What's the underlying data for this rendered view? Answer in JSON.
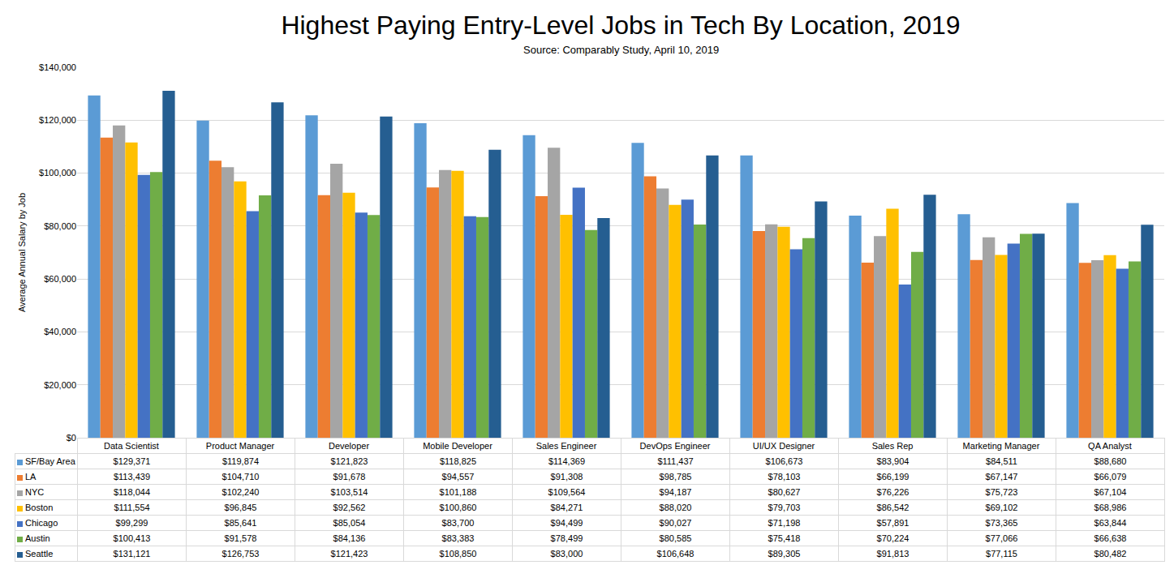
{
  "chart_data": {
    "type": "bar",
    "title": "Highest Paying Entry-Level Jobs in Tech By Location, 2019",
    "subtitle": "Source: Comparably Study, April 10, 2019",
    "y_label": "Average Annual Salary by Job",
    "categories": [
      "Data Scientist",
      "Product Manager",
      "Developer",
      "Mobile Developer",
      "Sales Engineer",
      "DevOps Engineer",
      "UI/UX Designer",
      "Sales Rep",
      "Marketing Manager",
      "QA Analyst"
    ],
    "series": [
      {
        "name": "SF/Bay Area",
        "color": "#5b9bd5",
        "values": [
          129371,
          119874,
          121823,
          118825,
          114369,
          111437,
          106673,
          83904,
          84511,
          88680
        ],
        "value_labels": [
          "$129,371",
          "$119,874",
          "$121,823",
          "$118,825",
          "$114,369",
          "$111,437",
          "$106,673",
          "$83,904",
          "$84,511",
          "$88,680"
        ]
      },
      {
        "name": "LA",
        "color": "#ed7d31",
        "values": [
          113439,
          104710,
          91678,
          94557,
          91308,
          98785,
          78103,
          66199,
          67147,
          66079
        ],
        "value_labels": [
          "$113,439",
          "$104,710",
          "$91,678",
          "$94,557",
          "$91,308",
          "$98,785",
          "$78,103",
          "$66,199",
          "$67,147",
          "$66,079"
        ]
      },
      {
        "name": "NYC",
        "color": "#a5a5a5",
        "values": [
          118044,
          102240,
          103514,
          101188,
          109564,
          94187,
          80627,
          76226,
          75723,
          67104
        ],
        "value_labels": [
          "$118,044",
          "$102,240",
          "$103,514",
          "$101,188",
          "$109,564",
          "$94,187",
          "$80,627",
          "$76,226",
          "$75,723",
          "$67,104"
        ]
      },
      {
        "name": "Boston",
        "color": "#ffc000",
        "values": [
          111554,
          96845,
          92562,
          100860,
          84271,
          88020,
          79703,
          86542,
          69102,
          68986
        ],
        "value_labels": [
          "$111,554",
          "$96,845",
          "$92,562",
          "$100,860",
          "$84,271",
          "$88,020",
          "$79,703",
          "$86,542",
          "$69,102",
          "$68,986"
        ]
      },
      {
        "name": "Chicago",
        "color": "#4472c4",
        "values": [
          99299,
          85641,
          85054,
          83700,
          94499,
          90027,
          71198,
          57891,
          73365,
          63844
        ],
        "value_labels": [
          "$99,299",
          "$85,641",
          "$85,054",
          "$83,700",
          "$94,499",
          "$90,027",
          "$71,198",
          "$57,891",
          "$73,365",
          "$63,844"
        ]
      },
      {
        "name": "Austin",
        "color": "#70ad47",
        "values": [
          100413,
          91578,
          84136,
          83383,
          78499,
          80585,
          75418,
          70224,
          77066,
          66638
        ],
        "value_labels": [
          "$100,413",
          "$91,578",
          "$84,136",
          "$83,383",
          "$78,499",
          "$80,585",
          "$75,418",
          "$70,224",
          "$77,066",
          "$66,638"
        ]
      },
      {
        "name": "Seattle",
        "color": "#255e91",
        "values": [
          131121,
          126753,
          121423,
          108850,
          83000,
          106648,
          89305,
          91813,
          77115,
          80482
        ],
        "value_labels": [
          "$131,121",
          "$126,753",
          "$121,423",
          "$108,850",
          "$83,000",
          "$106,648",
          "$89,305",
          "$91,813",
          "$77,115",
          "$80,482"
        ]
      }
    ],
    "ylim": [
      0,
      140000
    ],
    "yticks": [
      {
        "value": 0,
        "label": "$0"
      },
      {
        "value": 20000,
        "label": "$20,000"
      },
      {
        "value": 40000,
        "label": "$40,000"
      },
      {
        "value": 60000,
        "label": "$60,000"
      },
      {
        "value": 80000,
        "label": "$80,000"
      },
      {
        "value": 100000,
        "label": "$100,000"
      },
      {
        "value": 120000,
        "label": "$120,000"
      },
      {
        "value": 140000,
        "label": "$140,000"
      }
    ],
    "grid": true
  }
}
